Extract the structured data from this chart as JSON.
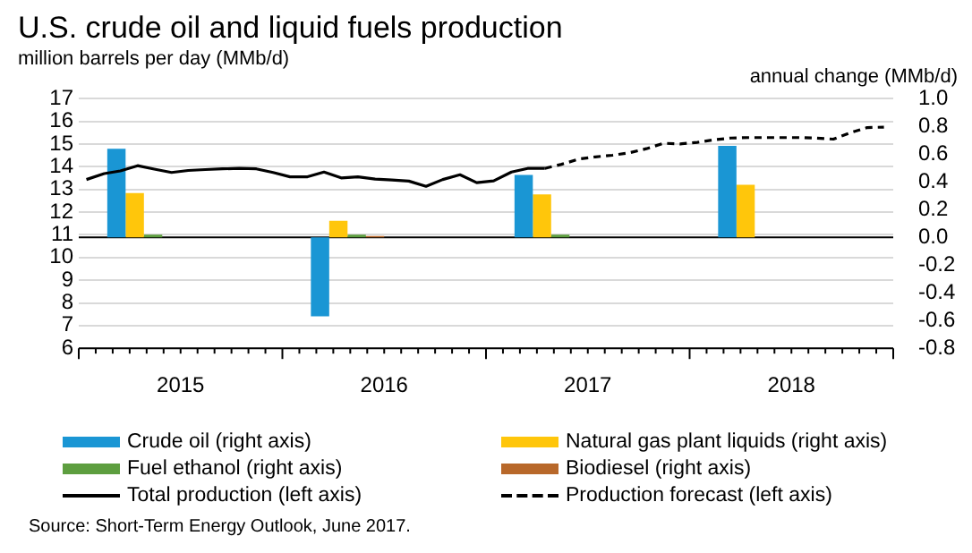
{
  "chart_data": {
    "type": "bar",
    "title": "U.S. crude oil and liquid fuels production",
    "ylabel": "million barrels per day (MMb/d)",
    "y2label": "annual change (MMb/d)",
    "x": [
      "2015-07",
      "2016-07",
      "2017-07",
      "2018-07"
    ],
    "series": [
      {
        "name": "Crude oil (right axis)",
        "axis": "y2",
        "color": "#1a96d4",
        "values": [
          0.64,
          -0.57,
          0.45,
          0.66
        ]
      },
      {
        "name": "Natural gas plant liquids (right axis)",
        "axis": "y2",
        "color": "#ffc60b",
        "values": [
          0.32,
          0.12,
          0.31,
          0.38
        ]
      },
      {
        "name": "Fuel ethanol (right axis)",
        "axis": "y2",
        "color": "#5d9e3f",
        "values": [
          0.02,
          0.02,
          0.02,
          null
        ]
      },
      {
        "name": "Biodiesel (right axis)",
        "axis": "y2",
        "color": "#b8682a",
        "values": [
          null,
          0.01,
          null,
          null
        ]
      },
      {
        "name": "Total production (left axis)",
        "type": "line",
        "color": "#000000",
        "line_style": "solid",
        "x": [
          "2015-01-15",
          "2015-02-15",
          "2015-03-15",
          "2015-04-15",
          "2015-05-15",
          "2015-06-15",
          "2015-07-15",
          "2015-08-15",
          "2015-09-15",
          "2015-10-15",
          "2015-11-15",
          "2015-12-15",
          "2016-01-15",
          "2016-02-15",
          "2016-03-15",
          "2016-04-15",
          "2016-05-15",
          "2016-06-15",
          "2016-07-15",
          "2016-08-15",
          "2016-09-15",
          "2016-10-15",
          "2016-11-15",
          "2016-12-15",
          "2017-01-15",
          "2017-02-15",
          "2017-03-15",
          "2017-04-15"
        ],
        "values": [
          13.44,
          13.7,
          13.82,
          14.05,
          13.9,
          13.75,
          13.84,
          13.88,
          13.91,
          13.93,
          13.91,
          13.75,
          13.56,
          13.56,
          13.77,
          13.51,
          13.56,
          13.46,
          13.42,
          13.37,
          13.14,
          13.44,
          13.65,
          13.3,
          13.38,
          13.77,
          13.93,
          13.93
        ]
      },
      {
        "name": "Production forecast (left axis)",
        "type": "line",
        "color": "#000000",
        "line_style": "dashed",
        "x": [
          "2017-04-15",
          "2017-05-15",
          "2017-06-15",
          "2017-07-15",
          "2017-08-15",
          "2017-09-15",
          "2017-10-15",
          "2017-11-15",
          "2017-12-15",
          "2018-01-15",
          "2018-02-15",
          "2018-03-15",
          "2018-04-15",
          "2018-05-15",
          "2018-06-15",
          "2018-07-15",
          "2018-08-15",
          "2018-09-15",
          "2018-10-15",
          "2018-11-15",
          "2018-12-15"
        ],
        "values": [
          13.93,
          14.11,
          14.34,
          14.44,
          14.51,
          14.62,
          14.8,
          15.04,
          15.01,
          15.08,
          15.2,
          15.27,
          15.29,
          15.29,
          15.29,
          15.29,
          15.27,
          15.22,
          15.5,
          15.73,
          15.75
        ]
      }
    ],
    "xlim": [
      "2015-01",
      "2019-01"
    ],
    "xticks": [
      {
        "value": "2015-01",
        "label": null
      },
      {
        "value": "2015-02",
        "label": null
      },
      {
        "value": "2015-03",
        "label": null
      },
      {
        "value": "2015-04",
        "label": null
      },
      {
        "value": "2015-05",
        "label": null
      },
      {
        "value": "2015-06",
        "label": null
      },
      {
        "value": "2015-07",
        "label": "2015"
      },
      {
        "value": "2015-08",
        "label": null
      },
      {
        "value": "2015-09",
        "label": null
      },
      {
        "value": "2015-10",
        "label": null
      },
      {
        "value": "2015-11",
        "label": null
      },
      {
        "value": "2015-12",
        "label": null
      },
      {
        "value": "2016-01",
        "label": null
      },
      {
        "value": "2016-02",
        "label": null
      },
      {
        "value": "2016-03",
        "label": null
      },
      {
        "value": "2016-04",
        "label": null
      },
      {
        "value": "2016-05",
        "label": null
      },
      {
        "value": "2016-06",
        "label": null
      },
      {
        "value": "2016-07",
        "label": "2016"
      },
      {
        "value": "2016-08",
        "label": null
      },
      {
        "value": "2016-09",
        "label": null
      },
      {
        "value": "2016-10",
        "label": null
      },
      {
        "value": "2016-11",
        "label": null
      },
      {
        "value": "2016-12",
        "label": null
      },
      {
        "value": "2017-01",
        "label": null
      },
      {
        "value": "2017-02",
        "label": null
      },
      {
        "value": "2017-03",
        "label": null
      },
      {
        "value": "2017-04",
        "label": null
      },
      {
        "value": "2017-05",
        "label": null
      },
      {
        "value": "2017-06",
        "label": null
      },
      {
        "value": "2017-07",
        "label": "2017"
      },
      {
        "value": "2017-08",
        "label": null
      },
      {
        "value": "2017-09",
        "label": null
      },
      {
        "value": "2017-10",
        "label": null
      },
      {
        "value": "2017-11",
        "label": null
      },
      {
        "value": "2017-12",
        "label": null
      },
      {
        "value": "2018-01",
        "label": null
      },
      {
        "value": "2018-02",
        "label": null
      },
      {
        "value": "2018-03",
        "label": null
      },
      {
        "value": "2018-04",
        "label": null
      },
      {
        "value": "2018-05",
        "label": null
      },
      {
        "value": "2018-06",
        "label": null
      },
      {
        "value": "2018-07",
        "label": "2018"
      },
      {
        "value": "2018-08",
        "label": null
      },
      {
        "value": "2018-09",
        "label": null
      },
      {
        "value": "2018-10",
        "label": null
      },
      {
        "value": "2018-11",
        "label": null
      },
      {
        "value": "2018-12",
        "label": null
      },
      {
        "value": "2019-01",
        "label": null
      }
    ],
    "ylim": [
      6,
      17
    ],
    "yticks": [
      6,
      7,
      8,
      9,
      10,
      11,
      12,
      13,
      14,
      15,
      16,
      17
    ],
    "y2lim": [
      -0.8,
      1.0
    ],
    "y2ticks": [
      -0.8,
      -0.6,
      -0.4,
      -0.2,
      {
        "value": 0,
        "label": "0.0"
      },
      0.2,
      0.4,
      0.6,
      0.8,
      {
        "value": 1,
        "label": "1.0"
      }
    ],
    "grid": "y",
    "legend": "bottom",
    "marker": "none",
    "annotations": [
      "Source: Short-Term Energy Outlook, June 2017."
    ]
  }
}
